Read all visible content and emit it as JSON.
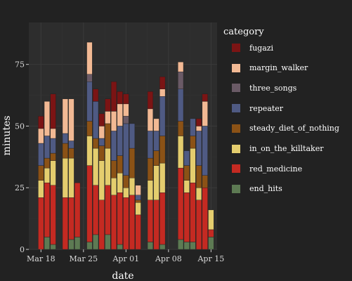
{
  "chart_data": {
    "type": "bar",
    "stacked": true,
    "title": "",
    "xlabel": "date",
    "ylabel": "minutes",
    "ylim": [
      0,
      92
    ],
    "yticks": [
      0,
      25,
      50,
      75
    ],
    "xlim": [
      "2024-03-16",
      "2024-04-16"
    ],
    "xticks": [
      {
        "date": "2024-03-18",
        "label": "Mar 18"
      },
      {
        "date": "2024-03-25",
        "label": "Mar 25"
      },
      {
        "date": "2024-04-01",
        "label": "Apr 01"
      },
      {
        "date": "2024-04-08",
        "label": "Apr 08"
      },
      {
        "date": "2024-04-15",
        "label": "Apr 15"
      }
    ],
    "grid": true,
    "legend_position": "right",
    "legend_title": "category",
    "legend_order": [
      "fugazi",
      "margin_walker",
      "three_songs",
      "repeater",
      "steady_diet_of_nothing",
      "in_on_the_killtaker",
      "red_medicine",
      "end_hits"
    ],
    "stack_order": [
      "end_hits",
      "red_medicine",
      "in_on_the_killtaker",
      "steady_diet_of_nothing",
      "repeater",
      "three_songs",
      "margin_walker",
      "fugazi"
    ],
    "colors": {
      "fugazi": "#7b1414",
      "margin_walker": "#f2b994",
      "three_songs": "#6a5a66",
      "repeater": "#4f5a83",
      "steady_diet_of_nothing": "#8b5216",
      "in_on_the_killtaker": "#e4cd6e",
      "red_medicine": "#c42a22",
      "end_hits": "#5d7a53"
    },
    "dates": [
      "2024-03-18",
      "2024-03-19",
      "2024-03-20",
      "2024-03-21",
      "2024-03-23",
      "2024-03-24",
      "2024-03-25",
      "2024-03-26",
      "2024-03-27",
      "2024-03-28",
      "2024-03-29",
      "2024-03-30",
      "2024-03-31",
      "2024-04-01",
      "2024-04-02",
      "2024-04-03",
      "2024-04-05",
      "2024-04-06",
      "2024-04-07",
      "2024-04-09",
      "2024-04-10",
      "2024-04-11",
      "2024-04-12",
      "2024-04-13",
      "2024-04-14",
      "2024-04-15"
    ],
    "series": [
      {
        "name": "end_hits",
        "values": [
          0,
          5,
          2,
          0,
          4,
          5,
          0,
          3,
          6,
          0,
          6,
          0,
          2,
          0,
          0,
          0,
          3,
          0,
          2,
          0,
          4,
          3,
          3,
          0,
          0,
          5
        ]
      },
      {
        "name": "red_medicine",
        "values": [
          21,
          22,
          24,
          0,
          17,
          22,
          0,
          31,
          20,
          20,
          20,
          22,
          21,
          21,
          22,
          14,
          17,
          20,
          21,
          0,
          29,
          20,
          24,
          20,
          25,
          3
        ]
      },
      {
        "name": "in_on_the_killtaker",
        "values": [
          7,
          6,
          10,
          0,
          16,
          0,
          0,
          12,
          15,
          16,
          15,
          7,
          8,
          4,
          7,
          5,
          8,
          14,
          12,
          0,
          13,
          5,
          14,
          5,
          0,
          8
        ]
      },
      {
        "name": "steady_diet_of_nothing",
        "values": [
          6,
          4,
          3,
          0,
          4,
          0,
          0,
          6,
          4,
          6,
          10,
          7,
          7,
          5,
          12,
          1,
          9,
          6,
          11,
          0,
          6,
          6,
          5,
          9,
          5,
          0
        ]
      },
      {
        "name": "repeater",
        "values": [
          9,
          9,
          6,
          0,
          3,
          0,
          0,
          16,
          15,
          3,
          0,
          12,
          12,
          21,
          10,
          2,
          11,
          8,
          16,
          0,
          13,
          6,
          7,
          14,
          20,
          0
        ]
      },
      {
        "name": "three_songs",
        "values": [
          0,
          0,
          0,
          0,
          0,
          0,
          0,
          3,
          0,
          0,
          0,
          0,
          0,
          3,
          0,
          0,
          0,
          0,
          0,
          0,
          7,
          0,
          0,
          0,
          0,
          0
        ]
      },
      {
        "name": "margin_walker",
        "values": [
          6,
          14,
          4,
          0,
          17,
          0,
          0,
          13,
          0,
          5,
          5,
          8,
          9,
          5,
          0,
          4,
          9,
          5,
          3,
          0,
          4,
          0,
          0,
          2,
          10,
          0
        ]
      },
      {
        "name": "fugazi",
        "values": [
          5,
          0,
          14,
          0,
          0,
          0,
          0,
          0,
          5,
          5,
          5,
          12,
          5,
          4,
          0,
          0,
          7,
          0,
          5,
          0,
          0,
          0,
          0,
          3,
          3,
          0
        ]
      }
    ],
    "extra_bars": [
      {
        "date": "2024-03-22",
        "note": "",
        "values": {
          "end_hits": 0,
          "red_medicine": 21,
          "in_on_the_killtaker": 16,
          "steady_diet_of_nothing": 6,
          "repeater": 4,
          "three_songs": 0,
          "margin_walker": 14,
          "fugazi": 0
        }
      },
      {
        "date": "2024-03-28",
        "note": "",
        "values": {
          "end_hits": 0,
          "red_medicine": 0,
          "in_on_the_killtaker": 0,
          "steady_diet_of_nothing": 0,
          "repeater": 0,
          "three_songs": 0,
          "margin_walker": 0,
          "fugazi": 0
        }
      }
    ]
  }
}
